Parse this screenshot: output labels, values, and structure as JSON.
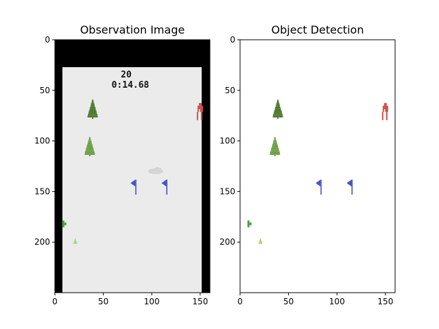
{
  "panels": {
    "left": {
      "title": "Observation Image"
    },
    "right": {
      "title": "Object Detection"
    }
  },
  "axes": {
    "x_ticks": [
      "0",
      "50",
      "100",
      "150"
    ],
    "y_ticks": [
      "0",
      "50",
      "100",
      "150",
      "200"
    ],
    "x_range": [
      0,
      160
    ],
    "y_range": [
      0,
      250
    ]
  },
  "hud": {
    "score": "20",
    "timer": "0:14.68"
  },
  "colors": {
    "background_black": "#000000",
    "snow": "#ebebeb",
    "tree_dark": "#4e7a2e",
    "tree_light": "#6ea046",
    "flag": "#4a52c8",
    "skier": "#d05050",
    "mogul": "#d4d4d4",
    "small_green": "#4aa042",
    "small_light_green": "#a8d880"
  },
  "objects": [
    {
      "type": "tree-dark",
      "x": 39,
      "y": 68
    },
    {
      "type": "tree-light",
      "x": 36,
      "y": 105
    },
    {
      "type": "skier",
      "x": 150,
      "y": 72
    },
    {
      "type": "flag",
      "x": 83,
      "y": 143
    },
    {
      "type": "flag",
      "x": 115,
      "y": 143
    },
    {
      "type": "mogul",
      "x": 104,
      "y": 130
    },
    {
      "type": "small-green",
      "x": 9,
      "y": 182
    },
    {
      "type": "small-light",
      "x": 21,
      "y": 199
    }
  ]
}
